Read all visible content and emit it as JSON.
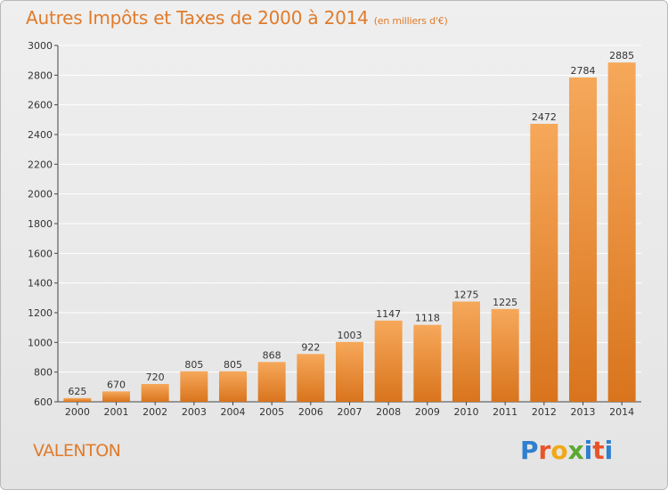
{
  "title": "Autres Impôts et Taxes de 2000 à 2014",
  "unit": "(en milliers d'€)",
  "commune": "VALENTON",
  "logo": {
    "letters": [
      "P",
      "r",
      "o",
      "x",
      "i",
      "t",
      "i"
    ],
    "colors": [
      "#2f7fcf",
      "#e8542a",
      "#f0a818",
      "#5aa832",
      "#2f7fcf",
      "#e8542a",
      "#2f7fcf"
    ]
  },
  "colors": {
    "text": "#e07b2a",
    "bar_light": "#f6a85a",
    "bar_dark": "#d9741d",
    "grid": "#ffffff"
  },
  "chart_data": {
    "type": "bar",
    "title": "Autres Impôts et Taxes de 2000 à 2014",
    "categories": [
      "2000",
      "2001",
      "2002",
      "2003",
      "2004",
      "2005",
      "2006",
      "2007",
      "2008",
      "2009",
      "2010",
      "2011",
      "2012",
      "2013",
      "2014"
    ],
    "values": [
      625,
      670,
      720,
      805,
      805,
      868,
      922,
      1003,
      1147,
      1118,
      1275,
      1225,
      2472,
      2784,
      2885
    ],
    "ylim": [
      600,
      3000
    ],
    "yticks": [
      600,
      800,
      1000,
      1200,
      1400,
      1600,
      1800,
      2000,
      2200,
      2400,
      2600,
      2800,
      3000
    ],
    "grid": true,
    "xlabel": "",
    "ylabel": ""
  }
}
